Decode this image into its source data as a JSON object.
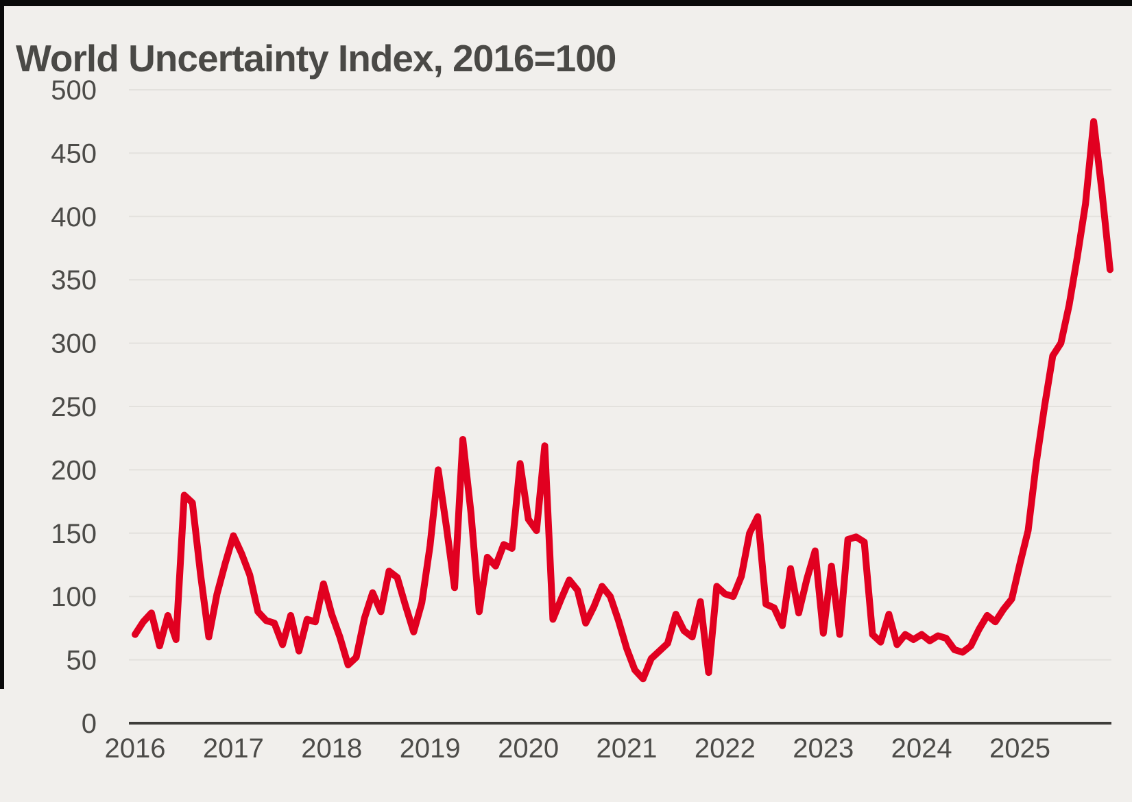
{
  "title": "World Uncertainty Index, 2016=100",
  "chart_data": {
    "type": "line",
    "title": "World Uncertainty Index, 2016=100",
    "series": [
      {
        "name": "World Uncertainty Index (2016=100)",
        "frequency": "monthly",
        "x_start": "2016-01",
        "x_end": "2025-12",
        "values": [
          70,
          80,
          87,
          61,
          85,
          66,
          180,
          174,
          117,
          68,
          102,
          126,
          148,
          134,
          117,
          88,
          81,
          79,
          62,
          85,
          57,
          82,
          80,
          110,
          86,
          68,
          46,
          52,
          83,
          103,
          88,
          120,
          115,
          93,
          72,
          95,
          140,
          200,
          155,
          107,
          224,
          166,
          88,
          131,
          124,
          141,
          138,
          205,
          161,
          152,
          219,
          82,
          98,
          113,
          105,
          79,
          92,
          108,
          100,
          81,
          59,
          42,
          35,
          51,
          57,
          63,
          86,
          73,
          68,
          96,
          40,
          108,
          102,
          100,
          116,
          150,
          163,
          94,
          91,
          77,
          122,
          87,
          114,
          136,
          71,
          124,
          70,
          145,
          147,
          143,
          70,
          64,
          86,
          62,
          70,
          66,
          70,
          65,
          69,
          67,
          58,
          56,
          61,
          74,
          85,
          80,
          90,
          98,
          126,
          152,
          206,
          250,
          290,
          300,
          330,
          368,
          410,
          475,
          420,
          358
        ]
      }
    ],
    "x_tick_labels": [
      "2016",
      "2017",
      "2018",
      "2019",
      "2020",
      "2021",
      "2022",
      "2023",
      "2024",
      "2025"
    ],
    "y_ticks": [
      0,
      50,
      100,
      150,
      200,
      250,
      300,
      350,
      400,
      450,
      500
    ],
    "ylim": [
      0,
      500
    ],
    "grid": "horizontal",
    "legend": "none",
    "line_color": "#e10020",
    "background_color": "#f1efec",
    "grid_color": "#e3e1dd",
    "axis_color": "#3e3d3a",
    "text_color": "#4c4b48"
  }
}
